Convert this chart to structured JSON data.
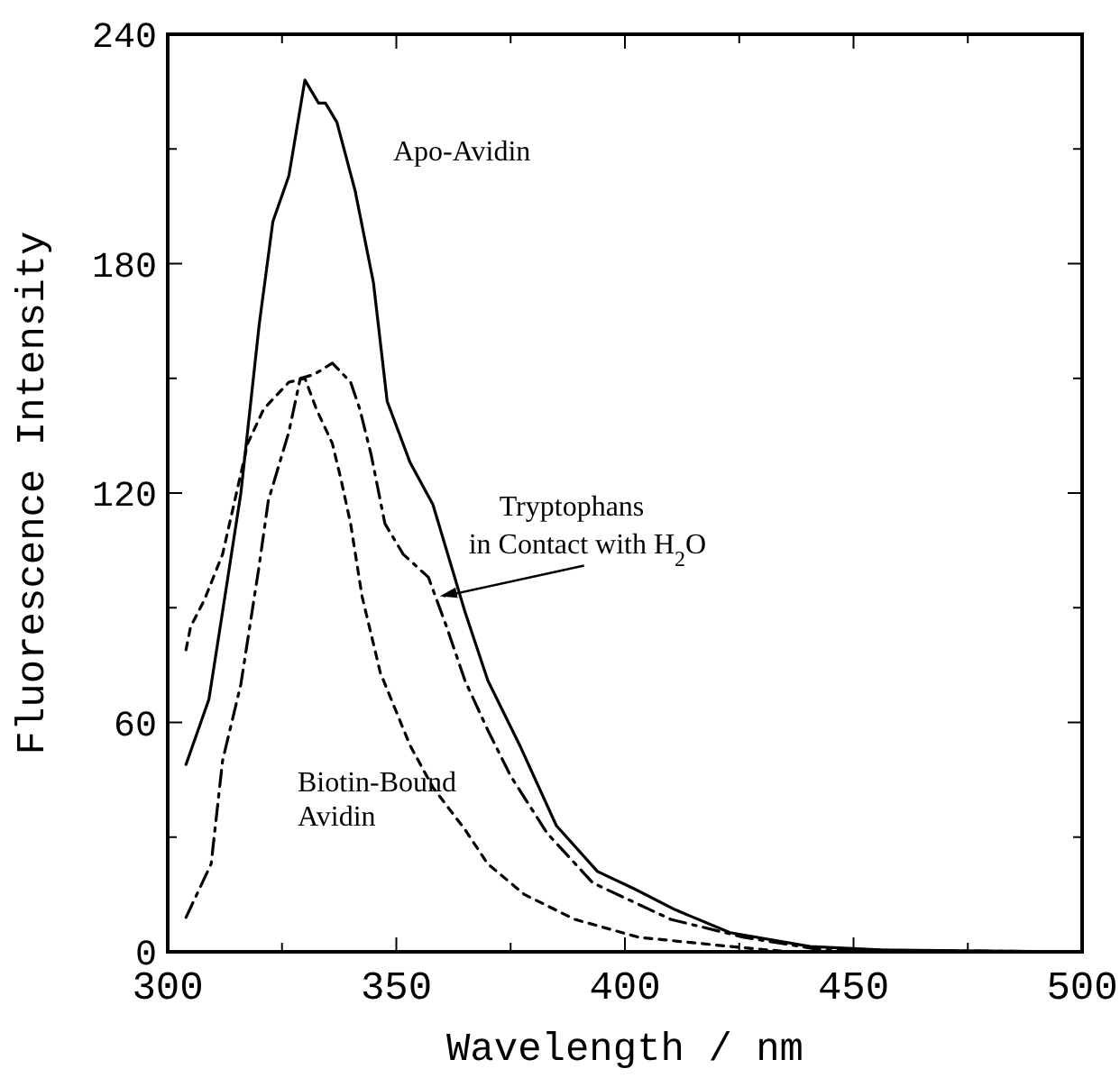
{
  "chart_data": {
    "type": "line",
    "xlabel": "Wavelength / nm",
    "ylabel": "Fluorescence Intensity",
    "xlim": [
      300,
      500
    ],
    "ylim": [
      0,
      240
    ],
    "xticks": [
      300,
      {
        "value": 325,
        "label": null
      },
      350,
      {
        "value": 375,
        "label": null
      },
      400,
      {
        "value": 425,
        "label": null
      },
      450,
      {
        "value": 475,
        "label": null
      },
      500
    ],
    "yticks": [
      0,
      {
        "value": 30,
        "label": null
      },
      60,
      {
        "value": 90,
        "label": null
      },
      120,
      {
        "value": 150,
        "label": null
      },
      180,
      {
        "value": 210,
        "label": null
      },
      240
    ],
    "grid": false,
    "legend": false,
    "marker": "none",
    "series": [
      {
        "name": "Apo-Avidin",
        "color": "#000000",
        "line_style": "solid",
        "x": [
          304,
          309,
          312,
          316,
          320,
          323,
          326.5,
          330,
          333,
          334.5,
          337,
          341,
          345,
          348,
          353,
          358,
          365,
          370,
          377,
          385,
          394,
          402,
          411,
          423,
          440.5,
          456,
          500
        ],
        "values": [
          49,
          66,
          89,
          120,
          164,
          191,
          203,
          228,
          222,
          222,
          217,
          199,
          175,
          144,
          128,
          117,
          89,
          71,
          54,
          33,
          21,
          16.5,
          11,
          5,
          1.4,
          0.5,
          0
        ]
      },
      {
        "name": "Biotin-Bound Avidin",
        "color": "#000000",
        "line_style": "dotted",
        "x": [
          304,
          305,
          308,
          312,
          317.5,
          321,
          326.5,
          330,
          332.5,
          336,
          338,
          340,
          342.5,
          346.5,
          353,
          358,
          365,
          370,
          378,
          389,
          403,
          423,
          436,
          500
        ],
        "values": [
          79,
          85,
          92,
          104,
          133,
          142,
          149,
          150,
          142,
          133,
          123,
          112,
          93,
          73,
          54,
          43,
          32,
          23,
          15,
          8.5,
          3.8,
          1.4,
          0,
          0
        ]
      },
      {
        "color": "#000000",
        "line_style": "dashed",
        "x": [
          304,
          309.5,
          312,
          316,
          320,
          322,
          326.5,
          329,
          332,
          336,
          340,
          342,
          344.5,
          347.5,
          351.5,
          357,
          361,
          365,
          370,
          375,
          383,
          393,
          410,
          426,
          443,
          500
        ],
        "values": [
          9,
          23,
          50,
          70,
          101,
          118,
          136,
          150,
          151,
          154,
          149,
          142,
          130,
          112,
          104,
          98,
          85,
          71,
          58,
          46,
          31,
          18,
          8.5,
          3.8,
          0.5,
          0
        ]
      }
    ],
    "annotations": [
      {
        "text": "Tryptophans in Contact with H$_{2}$O",
        "x": 359.5,
        "y": 93
      }
    ]
  }
}
